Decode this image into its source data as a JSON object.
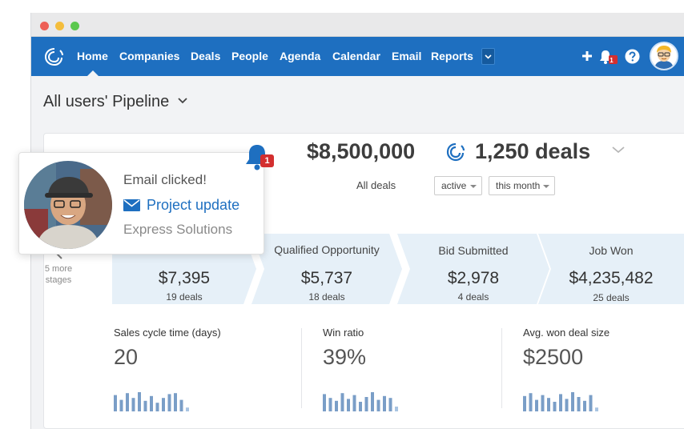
{
  "window": {
    "controls": [
      "close",
      "minimize",
      "maximize"
    ]
  },
  "nav": {
    "logo_icon": "spiral-logo-icon",
    "items": [
      {
        "label": "Home",
        "active": true
      },
      {
        "label": "Companies"
      },
      {
        "label": "Deals"
      },
      {
        "label": "People"
      },
      {
        "label": "Agenda"
      },
      {
        "label": "Calendar"
      },
      {
        "label": "Email"
      },
      {
        "label": "Reports"
      }
    ],
    "more_icon": "chevron-down-icon",
    "add_icon": "plus-icon",
    "bell_badge": "1",
    "help_icon": "help-icon",
    "avatar_icon": "user-avatar-icon",
    "color": "#1e6fc0"
  },
  "page": {
    "title": "All users' Pipeline"
  },
  "summary": {
    "amount": "$8,500,000",
    "deals": "1,250 deals",
    "filter_label": "All deals",
    "status_value": "active",
    "period_value": "this month"
  },
  "stages_nav": {
    "label_line1": "5 more",
    "label_line2": "stages"
  },
  "stages": [
    {
      "name": "",
      "value": "$7,395",
      "deals": "19 deals"
    },
    {
      "name": "Qualified Opportunity",
      "value": "$5,737",
      "deals": "18 deals"
    },
    {
      "name": "Bid Submitted",
      "value": "$2,978",
      "deals": "4 deals"
    },
    {
      "name": "Job Won",
      "value": "$4,235,482",
      "deals": "25 deals"
    }
  ],
  "metrics": [
    {
      "label": "Sales cycle time (days)",
      "value": "20",
      "bars": [
        0.85,
        0.6,
        0.95,
        0.7,
        1.0,
        0.55,
        0.8,
        0.45,
        0.7,
        0.9,
        0.95,
        0.6,
        0.2
      ]
    },
    {
      "label": "Win ratio",
      "value": "39%",
      "bars": [
        0.9,
        0.7,
        0.55,
        0.95,
        0.65,
        0.85,
        0.5,
        0.75,
        1.0,
        0.6,
        0.8,
        0.7,
        0.25
      ]
    },
    {
      "label": "Avg. won deal size",
      "value": "$2500",
      "bars": [
        0.8,
        0.95,
        0.6,
        0.85,
        0.7,
        0.5,
        0.9,
        0.65,
        1.0,
        0.75,
        0.55,
        0.85,
        0.2
      ]
    }
  ],
  "notification": {
    "title": "Email clicked!",
    "link": "Project update",
    "company": "Express Solutions",
    "bell_badge": "1",
    "accent": "#1e6fc0",
    "badge_color": "#d32f2f"
  }
}
